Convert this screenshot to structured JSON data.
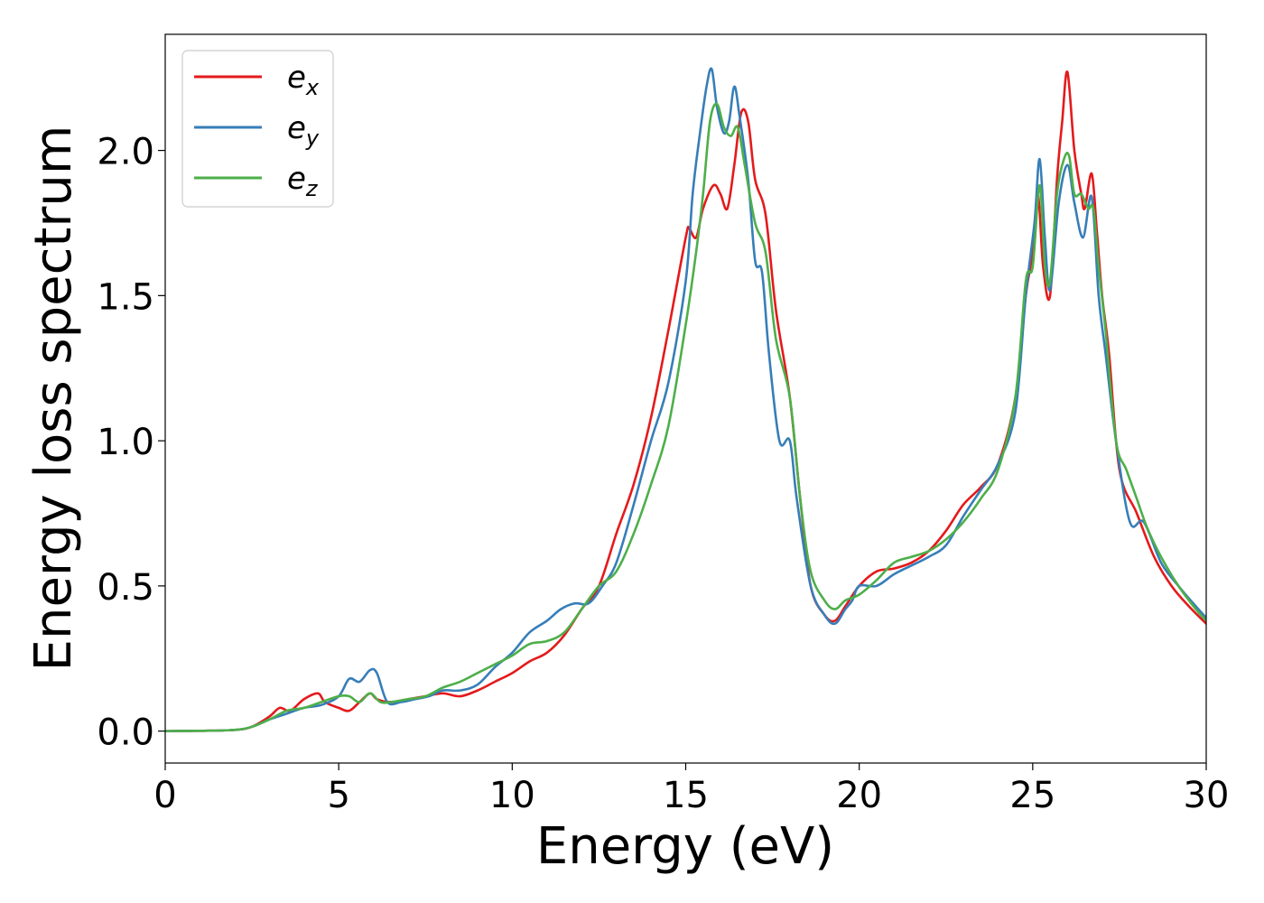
{
  "chart_data": {
    "type": "line",
    "xlabel": "Energy (eV)",
    "ylabel": "Energy loss spectrum",
    "xlim": [
      0,
      30
    ],
    "ylim": [
      -0.11,
      2.4
    ],
    "xticks": [
      "0",
      "5",
      "10",
      "15",
      "20",
      "25",
      "30"
    ],
    "yticks": [
      "0.0",
      "0.5",
      "1.0",
      "1.5",
      "2.0"
    ],
    "grid": false,
    "legend_position": "top-left",
    "series": [
      {
        "name": "e_x",
        "label_base": "e",
        "label_sub": "x",
        "color": "#e41a1c",
        "x": [
          0,
          1,
          2,
          2.5,
          3,
          3.3,
          3.6,
          4,
          4.4,
          4.6,
          5,
          5.3,
          5.6,
          5.9,
          6.1,
          6.5,
          7,
          7.5,
          8,
          8.5,
          9,
          9.5,
          10,
          10.5,
          11,
          11.5,
          12,
          12.5,
          13,
          13.5,
          14,
          14.5,
          15,
          15.1,
          15.3,
          15.5,
          15.8,
          16,
          16.2,
          16.4,
          16.6,
          16.8,
          17,
          17.3,
          17.6,
          18,
          18.3,
          18.6,
          19,
          19.3,
          19.6,
          20,
          20.5,
          21,
          21.5,
          22,
          22.5,
          23,
          23.5,
          24,
          24.5,
          24.8,
          25,
          25.15,
          25.3,
          25.5,
          25.7,
          25.85,
          26,
          26.2,
          26.4,
          26.5,
          26.7,
          26.85,
          27,
          27.2,
          27.5,
          28,
          28.5,
          29,
          29.5,
          30
        ],
        "y": [
          0,
          0.001,
          0.004,
          0.015,
          0.05,
          0.08,
          0.07,
          0.11,
          0.13,
          0.1,
          0.08,
          0.07,
          0.1,
          0.13,
          0.11,
          0.1,
          0.11,
          0.12,
          0.13,
          0.12,
          0.14,
          0.17,
          0.2,
          0.24,
          0.27,
          0.33,
          0.42,
          0.5,
          0.68,
          0.85,
          1.08,
          1.38,
          1.7,
          1.73,
          1.7,
          1.8,
          1.88,
          1.85,
          1.8,
          1.95,
          2.13,
          2.1,
          1.9,
          1.78,
          1.45,
          1.15,
          0.8,
          0.5,
          0.4,
          0.38,
          0.43,
          0.5,
          0.55,
          0.56,
          0.58,
          0.62,
          0.69,
          0.78,
          0.84,
          0.92,
          1.15,
          1.5,
          1.65,
          1.85,
          1.6,
          1.5,
          1.9,
          2.1,
          2.27,
          2.0,
          1.85,
          1.8,
          1.92,
          1.72,
          1.5,
          1.3,
          0.9,
          0.75,
          0.6,
          0.5,
          0.43,
          0.37
        ]
      },
      {
        "name": "e_y",
        "label_base": "e",
        "label_sub": "y",
        "color": "#377eb8",
        "x": [
          0,
          1,
          2,
          2.5,
          3,
          3.5,
          4,
          4.5,
          5,
          5.3,
          5.6,
          5.9,
          6.1,
          6.4,
          6.8,
          7.2,
          7.6,
          8,
          8.5,
          9,
          9.5,
          10,
          10.5,
          11,
          11.4,
          11.8,
          12.2,
          12.6,
          13,
          13.5,
          14,
          14.5,
          15,
          15.2,
          15.4,
          15.6,
          15.75,
          15.9,
          16.1,
          16.25,
          16.4,
          16.55,
          16.8,
          17,
          17.2,
          17.4,
          17.7,
          18,
          18.2,
          18.6,
          19,
          19.3,
          19.6,
          19.8,
          20,
          20.5,
          21,
          21.5,
          22,
          22.5,
          23,
          23.5,
          24,
          24.5,
          24.8,
          25.05,
          25.2,
          25.35,
          25.5,
          25.75,
          26,
          26.2,
          26.45,
          26.7,
          26.9,
          27.1,
          27.4,
          27.8,
          28.2,
          28.7,
          29.2,
          29.7,
          30
        ],
        "y": [
          0,
          0.001,
          0.004,
          0.015,
          0.04,
          0.06,
          0.08,
          0.09,
          0.12,
          0.18,
          0.17,
          0.21,
          0.2,
          0.1,
          0.1,
          0.11,
          0.12,
          0.14,
          0.14,
          0.16,
          0.22,
          0.27,
          0.34,
          0.38,
          0.42,
          0.44,
          0.44,
          0.5,
          0.58,
          0.78,
          1.0,
          1.2,
          1.55,
          1.85,
          2.05,
          2.22,
          2.28,
          2.15,
          2.06,
          2.1,
          2.22,
          2.12,
          1.9,
          1.62,
          1.58,
          1.3,
          1.0,
          1.0,
          0.8,
          0.5,
          0.4,
          0.37,
          0.42,
          0.45,
          0.5,
          0.5,
          0.54,
          0.57,
          0.6,
          0.64,
          0.74,
          0.83,
          0.92,
          1.1,
          1.5,
          1.75,
          1.97,
          1.7,
          1.52,
          1.82,
          1.95,
          1.82,
          1.7,
          1.84,
          1.5,
          1.3,
          1.0,
          0.72,
          0.72,
          0.58,
          0.5,
          0.43,
          0.39
        ]
      },
      {
        "name": "e_z",
        "label_base": "e",
        "label_sub": "z",
        "color": "#4daf4a",
        "x": [
          0,
          1,
          2,
          2.5,
          3,
          3.5,
          4,
          4.5,
          5,
          5.3,
          5.6,
          5.9,
          6.2,
          6.5,
          7,
          7.5,
          8,
          8.5,
          9,
          9.5,
          10,
          10.5,
          11,
          11.5,
          12,
          12.5,
          13,
          13.5,
          14,
          14.5,
          15,
          15.3,
          15.5,
          15.7,
          15.9,
          16.1,
          16.3,
          16.5,
          16.7,
          17,
          17.3,
          17.6,
          18,
          18.3,
          18.6,
          19,
          19.3,
          19.6,
          20,
          20.5,
          21,
          21.5,
          22,
          22.5,
          23,
          23.5,
          24,
          24.5,
          24.8,
          25,
          25.2,
          25.35,
          25.5,
          25.7,
          25.9,
          26.05,
          26.2,
          26.4,
          26.6,
          26.75,
          26.9,
          27.1,
          27.4,
          27.7,
          28,
          28.3,
          28.7,
          29.2,
          29.7,
          30
        ],
        "y": [
          0,
          0.001,
          0.004,
          0.015,
          0.04,
          0.07,
          0.08,
          0.1,
          0.12,
          0.12,
          0.1,
          0.13,
          0.1,
          0.1,
          0.11,
          0.12,
          0.15,
          0.17,
          0.2,
          0.23,
          0.26,
          0.3,
          0.31,
          0.34,
          0.42,
          0.5,
          0.55,
          0.68,
          0.85,
          1.05,
          1.4,
          1.65,
          1.85,
          2.1,
          2.16,
          2.08,
          2.05,
          2.08,
          1.95,
          1.75,
          1.65,
          1.35,
          1.15,
          0.8,
          0.55,
          0.45,
          0.42,
          0.45,
          0.47,
          0.52,
          0.58,
          0.6,
          0.62,
          0.66,
          0.72,
          0.8,
          0.9,
          1.15,
          1.55,
          1.6,
          1.88,
          1.6,
          1.55,
          1.85,
          1.97,
          1.98,
          1.85,
          1.85,
          1.8,
          1.8,
          1.6,
          1.38,
          1.0,
          0.9,
          0.8,
          0.7,
          0.6,
          0.5,
          0.42,
          0.38
        ]
      }
    ]
  }
}
